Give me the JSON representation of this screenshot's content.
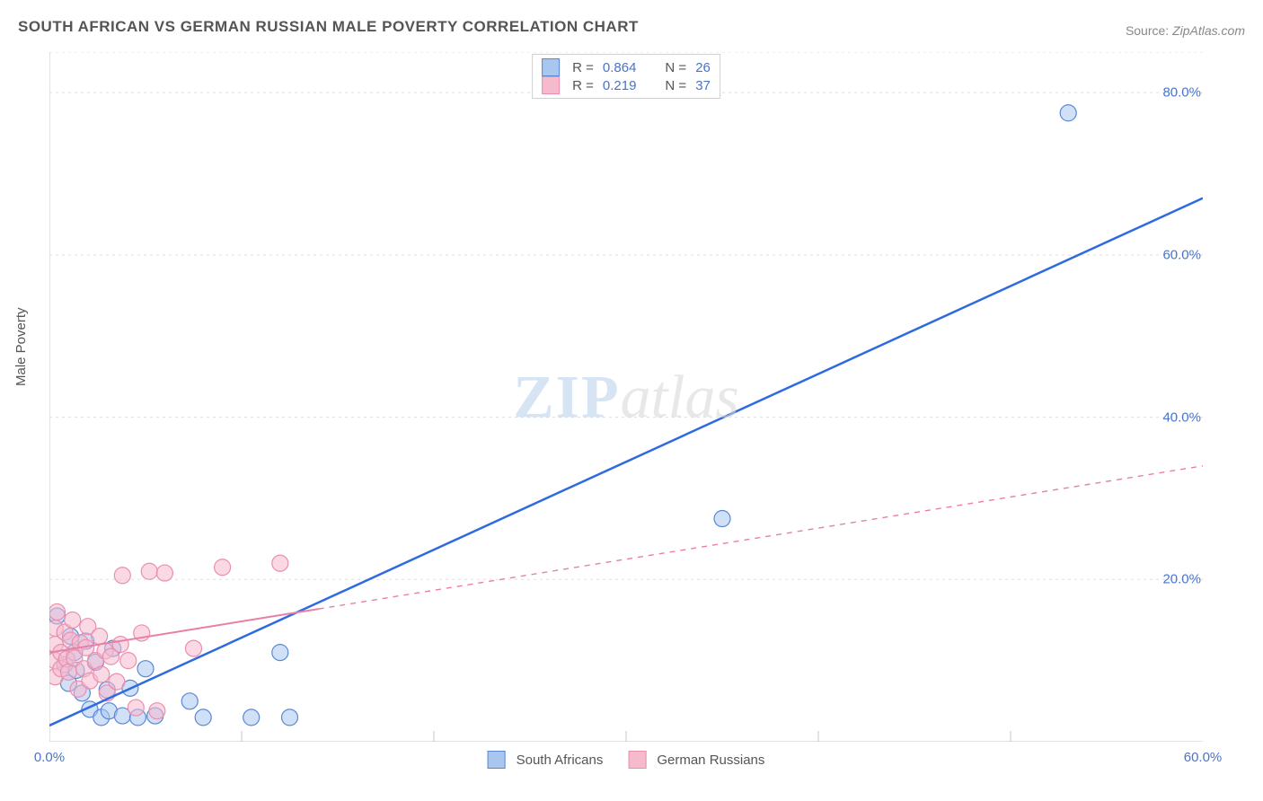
{
  "title": "SOUTH AFRICAN VS GERMAN RUSSIAN MALE POVERTY CORRELATION CHART",
  "source_label": "Source:",
  "source_value": "ZipAtlas.com",
  "ylabel": "Male Poverty",
  "watermark": {
    "zip": "ZIP",
    "atlas": "atlas"
  },
  "chart": {
    "type": "scatter-with-regression",
    "background_color": "#ffffff",
    "axis_color": "#c7c7c7",
    "grid_color": "#dfdfdf",
    "grid_dash": "3,4",
    "xlim": [
      0,
      60
    ],
    "ylim": [
      0,
      85
    ],
    "xtick_min_label": "0.0%",
    "xtick_max_label": "60.0%",
    "xtick_minor": [
      10,
      20,
      30,
      40,
      50
    ],
    "ytick_labels": [
      "20.0%",
      "40.0%",
      "60.0%",
      "80.0%"
    ],
    "ytick_values": [
      20,
      40,
      60,
      80
    ],
    "marker_radius": 9,
    "marker_stroke_width": 1.2,
    "tick_len": 12
  },
  "series": [
    {
      "name": "South Africans",
      "color_fill": "#a9c6ee",
      "color_stroke": "#5a88d6",
      "fill_opacity": 0.55,
      "R": "0.864",
      "N": "26",
      "regression": {
        "x1": 0,
        "y1": 2,
        "x2": 60,
        "y2": 67,
        "solid_until_x": 60,
        "line_color": "#2f6ae0",
        "line_width": 2.5,
        "dash": null
      },
      "points": [
        [
          0.4,
          15.5
        ],
        [
          0.8,
          9.5
        ],
        [
          1.0,
          7.2
        ],
        [
          1.1,
          13.0
        ],
        [
          1.3,
          11.0
        ],
        [
          1.4,
          8.8
        ],
        [
          1.7,
          6.0
        ],
        [
          1.9,
          12.4
        ],
        [
          2.1,
          4.0
        ],
        [
          2.4,
          9.8
        ],
        [
          2.7,
          3.0
        ],
        [
          3.0,
          6.4
        ],
        [
          3.1,
          3.8
        ],
        [
          3.3,
          11.5
        ],
        [
          3.8,
          3.2
        ],
        [
          4.2,
          6.6
        ],
        [
          4.6,
          3.0
        ],
        [
          5.5,
          3.2
        ],
        [
          5.0,
          9.0
        ],
        [
          7.3,
          5.0
        ],
        [
          8.0,
          3.0
        ],
        [
          10.5,
          3.0
        ],
        [
          12.0,
          11.0
        ],
        [
          12.5,
          3.0
        ],
        [
          35.0,
          27.5
        ],
        [
          53.0,
          77.5
        ]
      ]
    },
    {
      "name": "German Russians",
      "color_fill": "#f6bacd",
      "color_stroke": "#e98fae",
      "fill_opacity": 0.55,
      "R": "0.219",
      "N": "37",
      "regression": {
        "x1": 0,
        "y1": 11,
        "x2": 60,
        "y2": 34,
        "solid_until_x": 14,
        "line_color": "#e97fa6",
        "line_width": 2.0,
        "dash": "6,6"
      },
      "points": [
        [
          0.3,
          8.0
        ],
        [
          0.3,
          10.0
        ],
        [
          0.3,
          12.0
        ],
        [
          0.3,
          14.0
        ],
        [
          0.4,
          16.0
        ],
        [
          0.6,
          11.0
        ],
        [
          0.6,
          9.0
        ],
        [
          0.8,
          13.5
        ],
        [
          0.9,
          10.2
        ],
        [
          1.0,
          8.6
        ],
        [
          1.1,
          12.5
        ],
        [
          1.2,
          15.0
        ],
        [
          1.3,
          10.3
        ],
        [
          1.5,
          6.5
        ],
        [
          1.6,
          12.2
        ],
        [
          1.8,
          9.0
        ],
        [
          1.9,
          11.6
        ],
        [
          2.0,
          14.2
        ],
        [
          2.1,
          7.5
        ],
        [
          2.4,
          10.0
        ],
        [
          2.6,
          13.0
        ],
        [
          2.7,
          8.3
        ],
        [
          2.9,
          11.2
        ],
        [
          3.0,
          6.0
        ],
        [
          3.2,
          10.5
        ],
        [
          3.5,
          7.4
        ],
        [
          3.7,
          12.0
        ],
        [
          3.8,
          20.5
        ],
        [
          4.1,
          10.0
        ],
        [
          4.5,
          4.2
        ],
        [
          4.8,
          13.4
        ],
        [
          5.2,
          21.0
        ],
        [
          5.6,
          3.8
        ],
        [
          6.0,
          20.8
        ],
        [
          7.5,
          11.5
        ],
        [
          9.0,
          21.5
        ],
        [
          12.0,
          22.0
        ]
      ]
    }
  ],
  "stats_legend": {
    "R_label": "R =",
    "N_label": "N ="
  }
}
